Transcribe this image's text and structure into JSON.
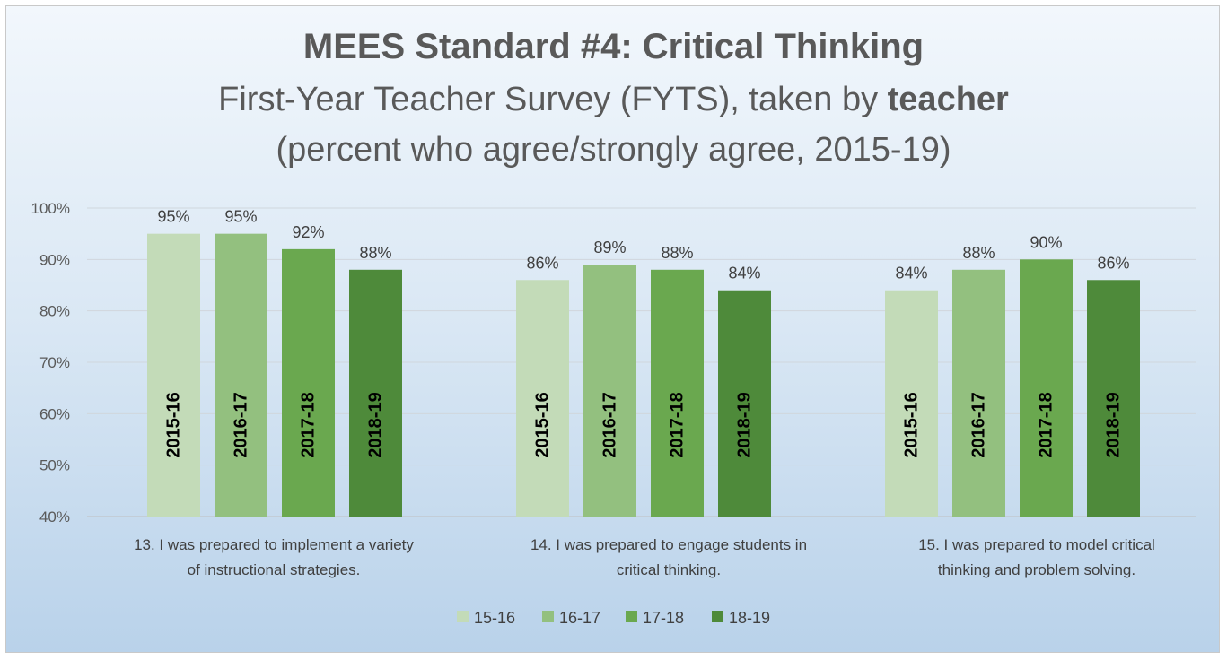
{
  "title": {
    "line1": "MEES Standard #4: Critical Thinking",
    "line2_prefix": "First-Year Teacher Survey (FYTS), taken by ",
    "line2_bold": "teacher",
    "line3": "(percent who agree/strongly agree, 2015-19)"
  },
  "chart_data": {
    "type": "bar",
    "title": "MEES Standard #4: Critical Thinking",
    "ylim": [
      40,
      100
    ],
    "yticks": [
      "40%",
      "50%",
      "60%",
      "70%",
      "80%",
      "90%",
      "100%"
    ],
    "grid": true,
    "legend_position": "bottom",
    "categories": [
      [
        "13. I was prepared to implement a variety",
        "of instructional strategies."
      ],
      [
        "14. I was prepared to engage students in",
        "critical thinking."
      ],
      [
        "15. I was prepared to model critical",
        "thinking and problem solving."
      ]
    ],
    "series": [
      {
        "name": "15-16",
        "bar_label": "2015-16",
        "color": "#c3dbb8",
        "values": [
          95,
          86,
          84
        ],
        "labels": [
          "95%",
          "86%",
          "84%"
        ]
      },
      {
        "name": "16-17",
        "bar_label": "2016-17",
        "color": "#93c07f",
        "values": [
          95,
          89,
          88
        ],
        "labels": [
          "95%",
          "89%",
          "88%"
        ]
      },
      {
        "name": "17-18",
        "bar_label": "2017-18",
        "color": "#6aa84f",
        "values": [
          92,
          88,
          90
        ],
        "labels": [
          "92%",
          "88%",
          "90%"
        ]
      },
      {
        "name": "18-19",
        "bar_label": "2018-19",
        "color": "#4e8a3a",
        "values": [
          88,
          84,
          86
        ],
        "labels": [
          "88%",
          "84%",
          "86%"
        ]
      }
    ]
  }
}
